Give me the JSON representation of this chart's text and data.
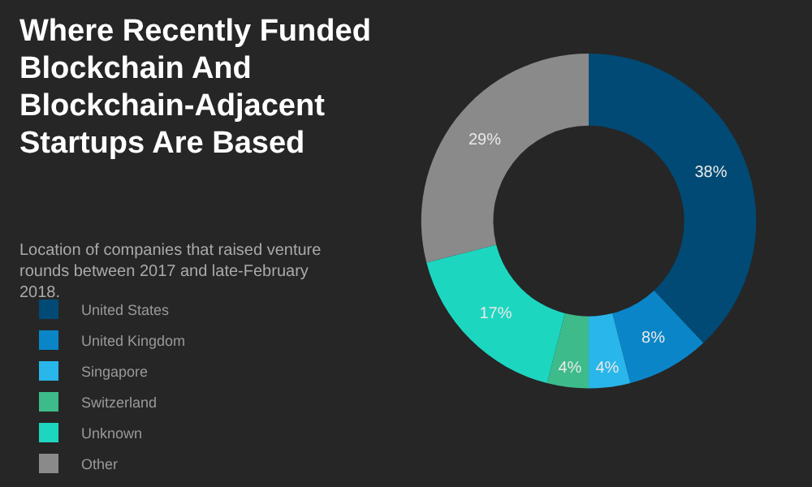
{
  "chart_data": {
    "type": "donut",
    "title": "Where Recently Funded Blockchain And Blockchain-Adjacent Startups Are Based",
    "subtitle": "Location of companies that raised venture rounds between 2017 and late-February 2018.",
    "categories": [
      "United States",
      "United Kingdom",
      "Singapore",
      "Switzerland",
      "Unknown",
      "Other"
    ],
    "values": [
      38,
      8,
      4,
      4,
      17,
      29
    ],
    "value_labels": [
      "38%",
      "8%",
      "4%",
      "4%",
      "17%",
      "29%"
    ],
    "colors": [
      "#004a75",
      "#0a86c8",
      "#29b6ea",
      "#3dbb8a",
      "#1dd6c0",
      "#8a8a8a"
    ],
    "legend": "bottom left"
  }
}
